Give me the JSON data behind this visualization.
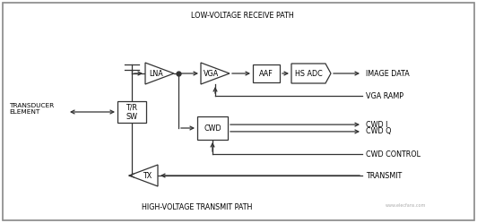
{
  "bg_color": "#ffffff",
  "line_color": "#333333",
  "figsize": [
    5.32,
    2.49
  ],
  "dpi": 100,
  "labels": {
    "low_voltage": "LOW-VOLTAGE RECEIVE PATH",
    "high_voltage": "HIGH-VOLTAGE TRANSMIT PATH",
    "transducer_1": "TRANSDUCER",
    "transducer_2": "ELEMENT",
    "image_data": "IMAGE DATA",
    "vga_ramp": "VGA RAMP",
    "cwd_i": "CWD I",
    "cwd_q": "CWD Q",
    "cwd_control": "CWD CONTROL",
    "transmit": "TRANSMIT",
    "lna": "LNA",
    "vga": "VGA",
    "aaf": "AAF",
    "hs_adc": "HS ADC",
    "cwd": "CWD",
    "tr_sw_1": "T/R",
    "tr_sw_2": "SW",
    "tx": "TX"
  },
  "font_size": 5.8,
  "lw": 0.9,
  "arrow_scale": 7
}
